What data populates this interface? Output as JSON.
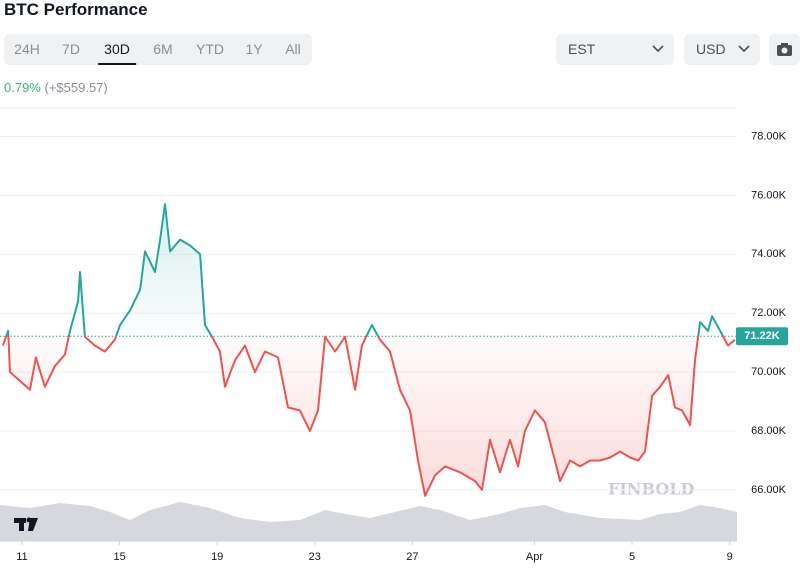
{
  "ui": {
    "title": "BTC Performance",
    "tabs": [
      "24H",
      "7D",
      "30D",
      "6M",
      "YTD",
      "1Y",
      "All"
    ],
    "selected_tab": 2,
    "timezone": "EST",
    "currency": "USD",
    "change_percent": "0.79%",
    "change_amount": "(+$559.57)",
    "watermark": "FINBOLD"
  },
  "chart_data": {
    "type": "line",
    "x": [
      -0.78,
      -0.57,
      -0.49,
      -0.08,
      0.33,
      0.57,
      0.94,
      1.35,
      1.76,
      1.97,
      2.3,
      2.38,
      2.58,
      2.99,
      3.4,
      3.81,
      4.02,
      4.43,
      4.84,
      5.04,
      5.45,
      5.66,
      5.86,
      6.07,
      6.48,
      6.89,
      7.3,
      7.5,
      7.79,
      8.11,
      8.32,
      8.73,
      9.14,
      9.55,
      9.96,
      10.49,
      10.9,
      11.39,
      11.8,
      12.13,
      12.42,
      12.83,
      13.24,
      13.65,
      13.93,
      14.34,
      14.67,
      15.08,
      15.49,
      15.9,
      16.23,
      16.52,
      16.93,
      17.34,
      17.95,
      18.57,
      18.85,
      19.18,
      19.59,
      20.0,
      20.33,
      20.61,
      21.02,
      21.43,
      21.84,
      22.05,
      22.46,
      22.87,
      23.28,
      23.69,
      24.1,
      24.51,
      24.92,
      25.25,
      25.53,
      25.82,
      26.15,
      26.48,
      26.76,
      27.05,
      27.38,
      27.58,
      27.79,
      28.11,
      28.28,
      28.61,
      28.93,
      29.22
    ],
    "values": [
      70900,
      71400,
      70000,
      69700,
      69400,
      70500,
      69500,
      70200,
      70600,
      71400,
      72400,
      73400,
      71200,
      70900,
      70700,
      71100,
      71600,
      72100,
      72800,
      74100,
      73400,
      74500,
      75700,
      74100,
      74500,
      74300,
      74000,
      71600,
      71200,
      70700,
      69500,
      70400,
      70900,
      70000,
      70700,
      70500,
      68800,
      68700,
      68000,
      68700,
      71200,
      70700,
      71200,
      69400,
      70900,
      71600,
      71100,
      70700,
      69400,
      68700,
      67000,
      65800,
      66500,
      66800,
      66600,
      66300,
      66000,
      67700,
      66600,
      67700,
      66800,
      68000,
      68700,
      68300,
      67000,
      66300,
      67000,
      66800,
      67000,
      67000,
      67100,
      67300,
      67100,
      67000,
      67300,
      69200,
      69500,
      69900,
      68800,
      68700,
      68200,
      70400,
      71700,
      71400,
      71900,
      71400,
      70900,
      71100
    ],
    "reference_line": {
      "value": 71220,
      "label": "71.22K"
    },
    "up_color": "#26a69a",
    "down_color": "#ef5350",
    "xlim": [
      -0.9,
      29.3
    ],
    "xticks": [
      {
        "value": 0,
        "label": "11"
      },
      {
        "value": 4,
        "label": "15"
      },
      {
        "value": 8,
        "label": "19"
      },
      {
        "value": 12,
        "label": "23"
      },
      {
        "value": 16,
        "label": "27"
      },
      {
        "value": 21,
        "label": "Apr"
      },
      {
        "value": 25,
        "label": "5"
      },
      {
        "value": 29,
        "label": "9"
      }
    ],
    "ylim": [
      64300,
      78900
    ],
    "yticks": [
      {
        "value": 66000,
        "label": "66.00K"
      },
      {
        "value": 68000,
        "label": "68.00K"
      },
      {
        "value": 70000,
        "label": "70.00K"
      },
      {
        "value": 72000,
        "label": "72.00K"
      },
      {
        "value": 74000,
        "label": "74.00K"
      },
      {
        "value": 76000,
        "label": "76.00K"
      },
      {
        "value": 78000,
        "label": "78.00K"
      }
    ],
    "grid": true
  }
}
